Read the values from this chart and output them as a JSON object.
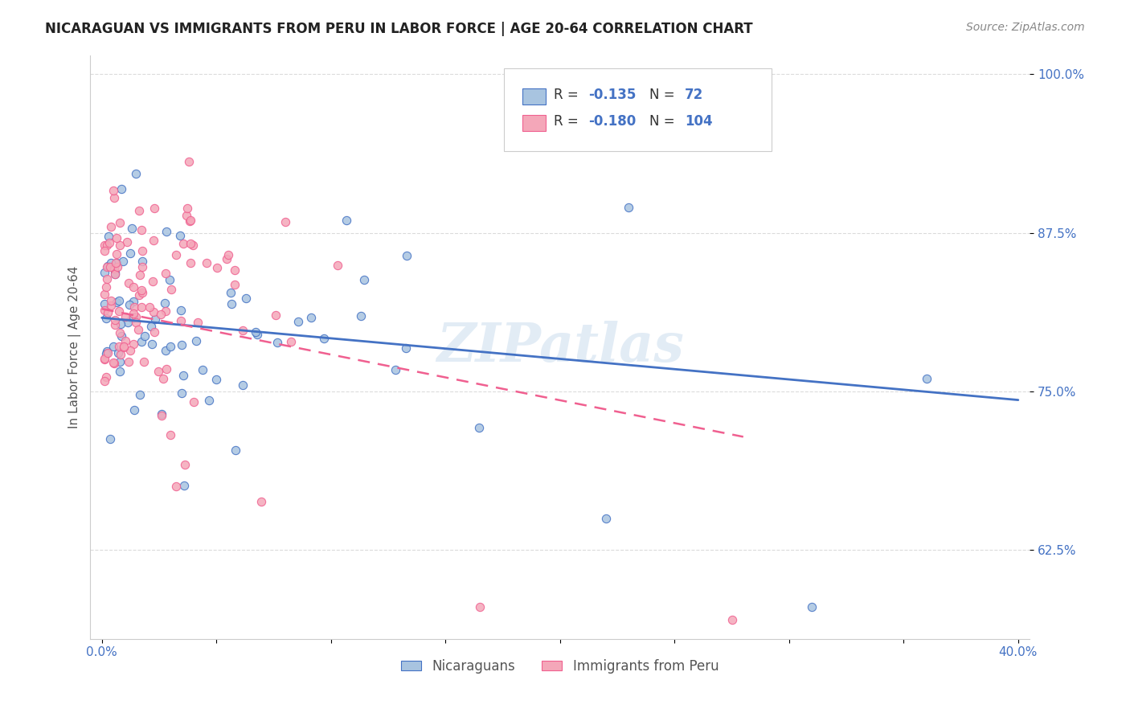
{
  "title": "NICARAGUAN VS IMMIGRANTS FROM PERU IN LABOR FORCE | AGE 20-64 CORRELATION CHART",
  "source": "Source: ZipAtlas.com",
  "ylabel": "In Labor Force | Age 20-64",
  "legend_r1": "-0.135",
  "legend_n1": "72",
  "legend_r2": "-0.180",
  "legend_n2": "104",
  "color_blue": "#a8c4e0",
  "color_pink": "#f4a7b9",
  "line_blue": "#4472c4",
  "line_pink": "#f06090",
  "watermark": "ZIPatlas",
  "axis_color": "#4472c4"
}
